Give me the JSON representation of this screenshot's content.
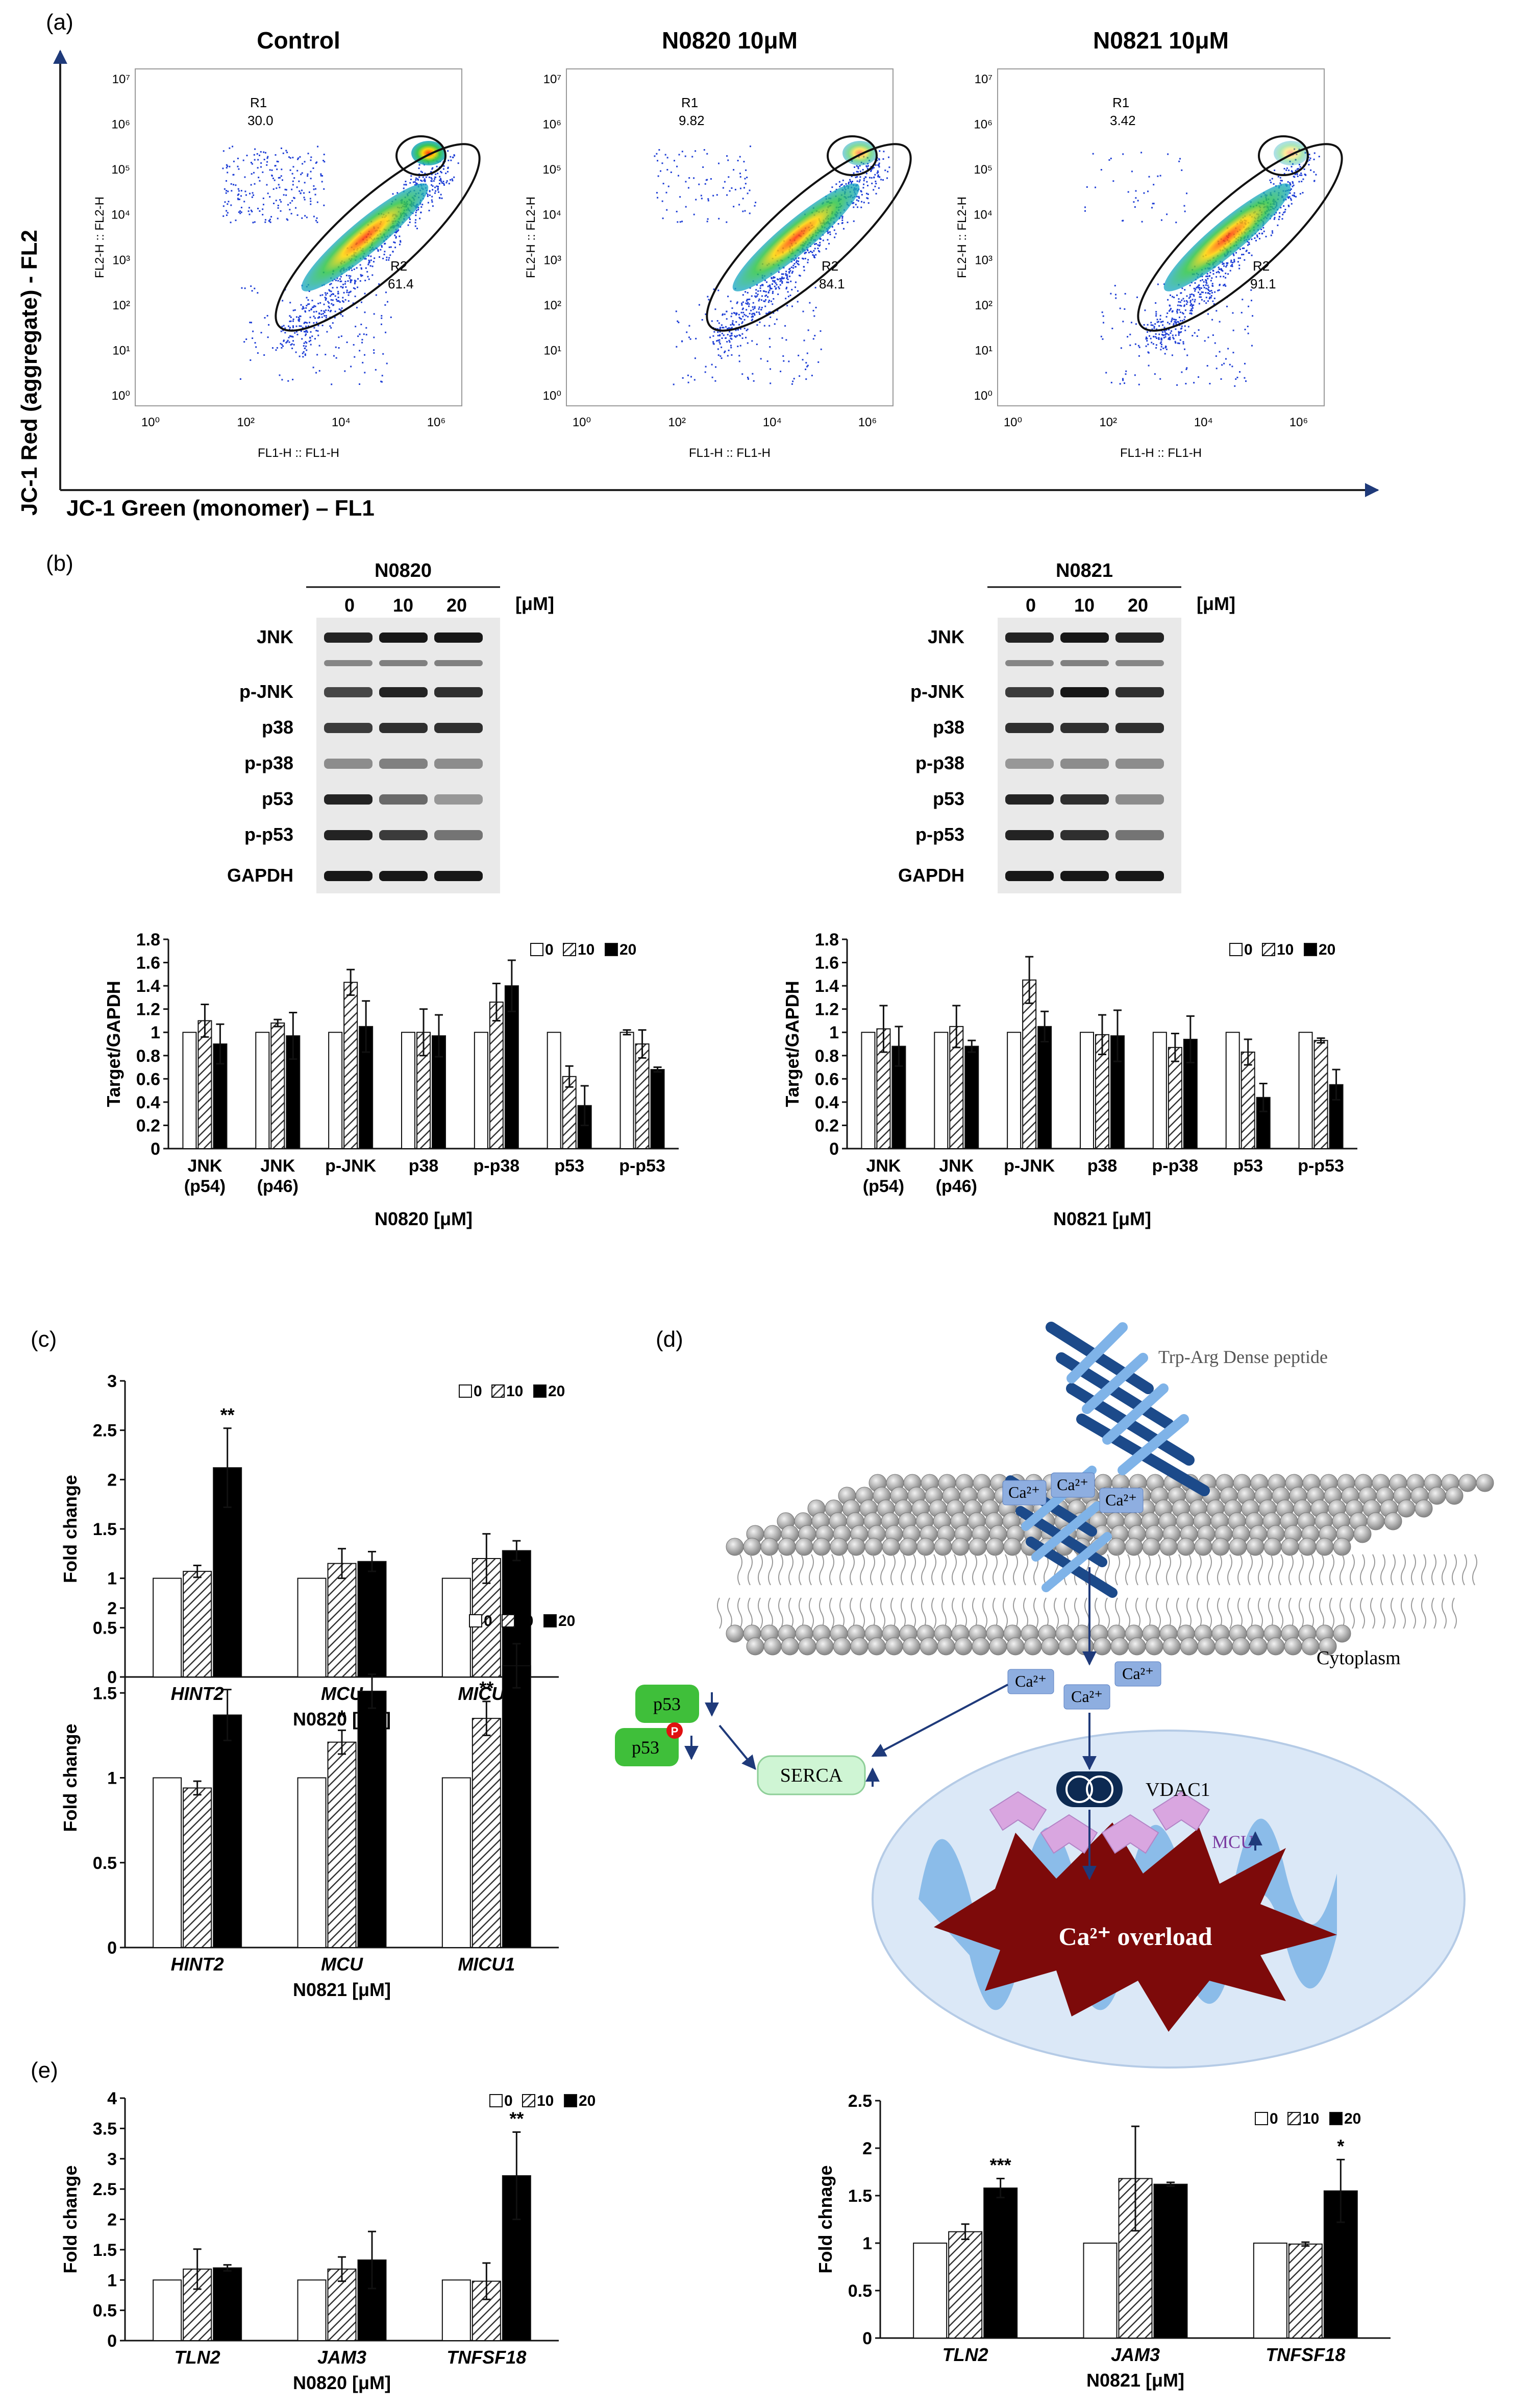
{
  "panel_labels": {
    "a": "(a)",
    "b": "(b)",
    "c": "(c)",
    "d": "(d)",
    "e": "(e)"
  },
  "flow": {
    "y_axis_title": "JC-1 Red (aggregate) - FL2",
    "x_axis_title": "JC-1 Green (monomer) – FL1",
    "plot_xlabel": "FL1-H :: FL1-H",
    "plot_ylabel": "FL2-H :: FL2-H",
    "x_ticks": [
      "10⁰",
      "10²",
      "10⁴",
      "10⁶"
    ],
    "y_ticks": [
      "10⁰",
      "10¹",
      "10²",
      "10³",
      "10⁴",
      "10⁵",
      "10⁶",
      "10⁷"
    ],
    "plots": [
      {
        "title": "Control",
        "r1_name": "R1",
        "r1_value": "30.0",
        "r2_name": "R2",
        "r2_value": "61.4"
      },
      {
        "title": "N0820 10μM",
        "r1_name": "R1",
        "r1_value": "9.82",
        "r2_name": "R2",
        "r2_value": "84.1"
      },
      {
        "title": "N0821 10μM",
        "r1_name": "R1",
        "r1_value": "3.42",
        "r2_name": "R2",
        "r2_value": "91.1"
      }
    ]
  },
  "blots": [
    {
      "compound": "N0820",
      "doses": [
        "0",
        "10",
        "20"
      ],
      "unit": "[μM]",
      "proteins": [
        "JNK",
        "p-JNK",
        "p38",
        "p-p38",
        "p53",
        "p-p53",
        "GAPDH"
      ]
    },
    {
      "compound": "N0821",
      "doses": [
        "0",
        "10",
        "20"
      ],
      "unit": "[μM]",
      "proteins": [
        "JNK",
        "p-JNK",
        "p38",
        "p-p38",
        "p53",
        "p-p53",
        "GAPDH"
      ]
    }
  ],
  "legend": {
    "items": [
      "0",
      "10",
      "20"
    ]
  },
  "chart_data": [
    {
      "id": "b-left",
      "type": "bar",
      "ylabel": "Target/GAPDH",
      "xlabel": "N0820 [μM]",
      "ylim": [
        0,
        1.8
      ],
      "yticks": [
        "0",
        "0.2",
        "0.4",
        "0.6",
        "0.8",
        "1",
        "1.2",
        "1.4",
        "1.6",
        "1.8"
      ],
      "categories": [
        "JNK (p54)",
        "JNK (p46)",
        "p-JNK",
        "p38",
        "p-p38",
        "p53",
        "p-p53"
      ],
      "series": [
        {
          "name": "0",
          "values": [
            1,
            1,
            1,
            1,
            1,
            1,
            1
          ],
          "errors": [
            0,
            0,
            0,
            0,
            0,
            0,
            0.02
          ]
        },
        {
          "name": "10",
          "values": [
            1.1,
            1.08,
            1.43,
            1.0,
            1.26,
            0.62,
            0.9
          ],
          "errors": [
            0.14,
            0.03,
            0.11,
            0.2,
            0.16,
            0.09,
            0.12
          ]
        },
        {
          "name": "20",
          "values": [
            0.9,
            0.97,
            1.05,
            0.97,
            1.4,
            0.37,
            0.68
          ],
          "errors": [
            0.17,
            0.2,
            0.22,
            0.18,
            0.22,
            0.17,
            0.02
          ]
        }
      ]
    },
    {
      "id": "b-right",
      "type": "bar",
      "ylabel": "Target/GAPDH",
      "xlabel": "N0821 [μM]",
      "ylim": [
        0,
        1.8
      ],
      "yticks": [
        "0",
        "0.2",
        "0.4",
        "0.6",
        "0.8",
        "1",
        "1.2",
        "1.4",
        "1.6",
        "1.8"
      ],
      "categories": [
        "JNK (p54)",
        "JNK (p46)",
        "p-JNK",
        "p38",
        "p-p38",
        "p53",
        "p-p53"
      ],
      "series": [
        {
          "name": "0",
          "values": [
            1,
            1,
            1,
            1,
            1,
            1,
            1
          ],
          "errors": [
            0,
            0,
            0,
            0,
            0,
            0,
            0
          ]
        },
        {
          "name": "10",
          "values": [
            1.03,
            1.05,
            1.45,
            0.98,
            0.87,
            0.83,
            0.93
          ],
          "errors": [
            0.2,
            0.18,
            0.2,
            0.17,
            0.12,
            0.11,
            0.02
          ]
        },
        {
          "name": "20",
          "values": [
            0.88,
            0.88,
            1.05,
            0.97,
            0.94,
            0.44,
            0.55
          ],
          "errors": [
            0.17,
            0.05,
            0.13,
            0.22,
            0.2,
            0.12,
            0.13
          ]
        }
      ]
    },
    {
      "id": "c-top",
      "type": "bar",
      "ylabel": "Fold change",
      "xlabel": "N0820 [μM]",
      "ylim": [
        0,
        3
      ],
      "yticks": [
        "0",
        "0.5",
        "1",
        "1.5",
        "2",
        "2.5",
        "3"
      ],
      "categories": [
        "HINT2",
        "MCU",
        "MICU1"
      ],
      "series": [
        {
          "name": "0",
          "values": [
            1,
            1,
            1
          ],
          "errors": [
            0,
            0,
            0
          ]
        },
        {
          "name": "10",
          "values": [
            1.07,
            1.15,
            1.2
          ],
          "errors": [
            0.06,
            0.15,
            0.25
          ]
        },
        {
          "name": "20",
          "values": [
            2.12,
            1.17,
            1.28
          ],
          "errors": [
            0.4,
            0.1,
            0.1
          ]
        }
      ],
      "annotations": [
        {
          "category": "HINT2",
          "series": "20",
          "text": "**"
        }
      ]
    },
    {
      "id": "c-bottom",
      "type": "bar",
      "ylabel": "Fold change",
      "xlabel": "N0821 [μM]",
      "ylim": [
        0,
        2
      ],
      "yticks": [
        "0",
        "0.5",
        "1",
        "1.5",
        "2"
      ],
      "categories": [
        "HINT2",
        "MCU",
        "MICU1"
      ],
      "series": [
        {
          "name": "0",
          "values": [
            1,
            1,
            1
          ],
          "errors": [
            0,
            0,
            0
          ]
        },
        {
          "name": "10",
          "values": [
            0.94,
            1.21,
            1.35
          ],
          "errors": [
            0.04,
            0.07,
            0.1
          ]
        },
        {
          "name": "20",
          "values": [
            1.37,
            1.51,
            1.66
          ],
          "errors": [
            0.15,
            0.1,
            0.13
          ]
        }
      ],
      "annotations": [
        {
          "category": "HINT2",
          "series": "20",
          "text": "**"
        },
        {
          "category": "MCU",
          "series": "10",
          "text": "*"
        },
        {
          "category": "MCU",
          "series": "20",
          "text": "***"
        },
        {
          "category": "MICU1",
          "series": "10",
          "text": "**"
        },
        {
          "category": "MICU1",
          "series": "20",
          "text": "***"
        }
      ]
    },
    {
      "id": "e-left",
      "type": "bar",
      "ylabel": "Fold change",
      "xlabel": "N0820 [μM]",
      "ylim": [
        0,
        4
      ],
      "yticks": [
        "0",
        "0.5",
        "1",
        "1.5",
        "2",
        "2.5",
        "3",
        "3.5",
        "4"
      ],
      "categories": [
        "TLN2",
        "JAM3",
        "TNFSF18"
      ],
      "series": [
        {
          "name": "0",
          "values": [
            1,
            1,
            1
          ],
          "errors": [
            0,
            0,
            0
          ]
        },
        {
          "name": "10",
          "values": [
            1.18,
            1.18,
            0.98
          ],
          "errors": [
            0.33,
            0.2,
            0.3
          ]
        },
        {
          "name": "20",
          "values": [
            1.2,
            1.33,
            2.72
          ],
          "errors": [
            0.05,
            0.47,
            0.72
          ]
        }
      ],
      "annotations": [
        {
          "category": "TNFSF18",
          "series": "20",
          "text": "**"
        }
      ]
    },
    {
      "id": "e-right",
      "type": "bar",
      "ylabel": "Fold chnage",
      "xlabel": "N0821 [μM]",
      "ylim": [
        0,
        2.5
      ],
      "yticks": [
        "0",
        "0.5",
        "1",
        "1.5",
        "2",
        "2.5"
      ],
      "categories": [
        "TLN2",
        "JAM3",
        "TNFSF18"
      ],
      "series": [
        {
          "name": "0",
          "values": [
            1,
            1,
            1
          ],
          "errors": [
            0,
            0,
            0
          ]
        },
        {
          "name": "10",
          "values": [
            1.12,
            1.68,
            0.99
          ],
          "errors": [
            0.08,
            0.55,
            0.02
          ]
        },
        {
          "name": "20",
          "values": [
            1.58,
            1.62,
            1.55
          ],
          "errors": [
            0.1,
            0.02,
            0.33
          ]
        }
      ],
      "annotations": [
        {
          "category": "TLN2",
          "series": "20",
          "text": "***"
        },
        {
          "category": "TNFSF18",
          "series": "20",
          "text": "*"
        }
      ]
    }
  ],
  "diagram": {
    "peptide_label": "Trp-Arg Dense peptide",
    "ca_label": "Ca²⁺",
    "cytoplasm_label": "Cytoplasm",
    "p53_label": "p53",
    "p_label": "P",
    "serca_label": "SERCA",
    "vdac_label": "VDAC1",
    "mcu_label": "MCU",
    "overload_label": "Ca²⁺ overload"
  }
}
